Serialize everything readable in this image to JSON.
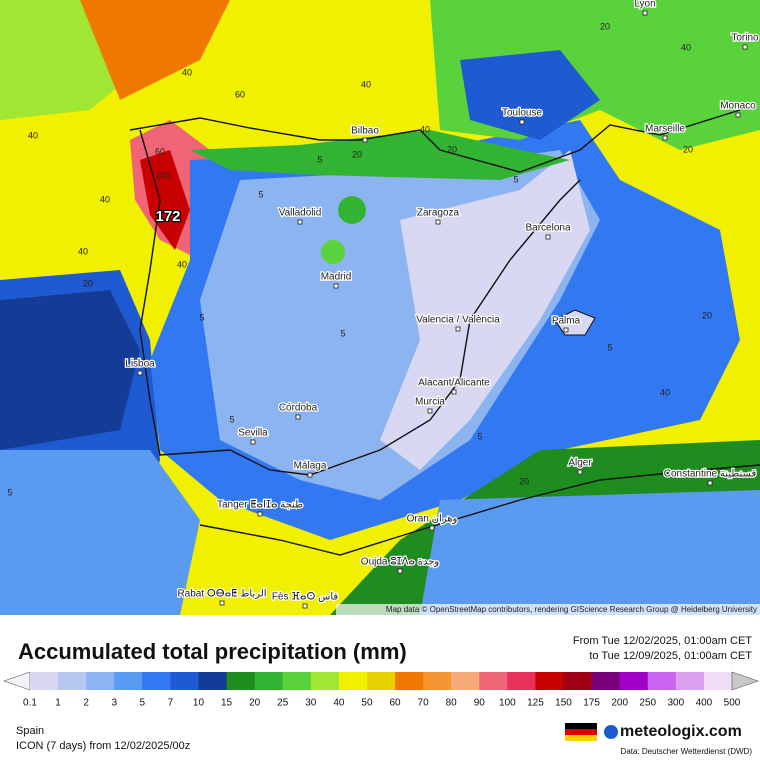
{
  "header": {
    "title": "Accumulated total precipitation (mm)",
    "from": "From Tue 12/02/2025, 01:00am CET",
    "to": "to Tue 12/09/2025, 01:00am CET"
  },
  "map": {
    "attribution": "Map data © OpenStreetMap contributors, rendering GIScience Research Group @ Heidelberg University",
    "cities": [
      "Lyon",
      "Torino",
      "Monaco",
      "Toulouse",
      "Marseille",
      "Bilbao",
      "Valladolid",
      "Zaragoza",
      "Barcelona",
      "Madrid",
      "Valencia / València",
      "Palma",
      "Lisboa",
      "Alacant/Alicante",
      "Murcia",
      "Córdoba",
      "Sevilla",
      "Málaga",
      "Alger",
      "Constantine قسنطينة",
      "Tanger ⵟⴰⵏⵊⴰ طنجة",
      "Oran وهران",
      "Oujda ⵓⵊⴷⴰ وجدة",
      "Rabat ⵔⴱⴰⵟ الرباط",
      "Fès ⴼⴰⵙ فاس"
    ],
    "max_label": 172,
    "contour_labels": [
      40,
      40,
      40,
      60,
      40,
      40,
      60,
      100,
      40,
      20,
      40,
      5,
      20,
      20,
      40,
      20,
      20,
      5,
      5,
      5,
      5,
      5,
      5,
      40,
      20,
      5,
      5,
      20
    ]
  },
  "legend": {
    "values": [
      0.1,
      1,
      2,
      3,
      5,
      7,
      10,
      15,
      20,
      25,
      30,
      40,
      50,
      60,
      70,
      80,
      90,
      100,
      125,
      150,
      175,
      200,
      250,
      300,
      400,
      500
    ],
    "colors": [
      "#f2f2fb",
      "#d8d8f2",
      "#b4c8f0",
      "#8cb4f0",
      "#5a9af0",
      "#3278f0",
      "#1e5ad2",
      "#143c96",
      "#1e8c1e",
      "#32b432",
      "#5ad23c",
      "#a0e632",
      "#f0f000",
      "#e6d200",
      "#f07800",
      "#f59632",
      "#f5aa78",
      "#f06478",
      "#e6325a",
      "#c80000",
      "#a00014",
      "#780078",
      "#a000c8",
      "#c864f0",
      "#dca0f0",
      "#f0dcf5",
      "#c8c8c8"
    ]
  },
  "footer": {
    "region": "Spain",
    "model": "ICON (7 days)  from  12/02/2025/00z",
    "brand": "meteologix.com",
    "source": "Data: Deutscher Wetterdienst (DWD)"
  }
}
